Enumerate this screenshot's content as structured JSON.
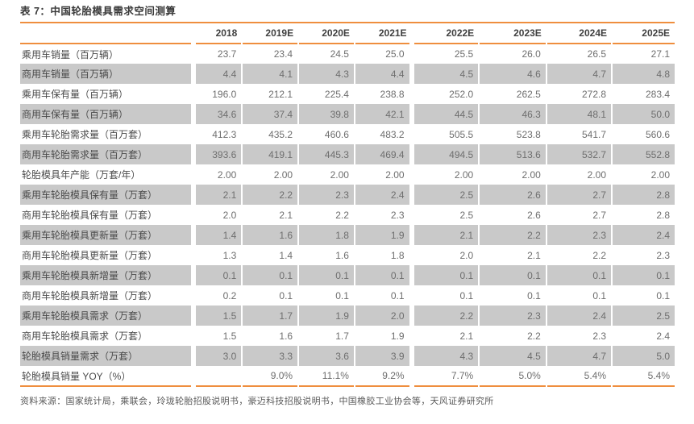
{
  "table": {
    "title": "表 7：中国轮胎模具需求空间测算",
    "columns": [
      "2018",
      "2019E",
      "2020E",
      "2021E",
      "2022E",
      "2023E",
      "2024E",
      "2025E"
    ],
    "rows": [
      {
        "label": "乘用车销量（百万辆）",
        "values": [
          "23.7",
          "23.4",
          "24.5",
          "25.0",
          "25.5",
          "26.0",
          "26.5",
          "27.1"
        ]
      },
      {
        "label": "商用车销量（百万辆）",
        "values": [
          "4.4",
          "4.1",
          "4.3",
          "4.4",
          "4.5",
          "4.6",
          "4.7",
          "4.8"
        ]
      },
      {
        "label": "乘用车保有量（百万辆）",
        "values": [
          "196.0",
          "212.1",
          "225.4",
          "238.8",
          "252.0",
          "262.5",
          "272.8",
          "283.4"
        ]
      },
      {
        "label": "商用车保有量（百万辆）",
        "values": [
          "34.6",
          "37.4",
          "39.8",
          "42.1",
          "44.5",
          "46.3",
          "48.1",
          "50.0"
        ]
      },
      {
        "label": "乘用车轮胎需求量（百万套）",
        "values": [
          "412.3",
          "435.2",
          "460.6",
          "483.2",
          "505.5",
          "523.8",
          "541.7",
          "560.6"
        ]
      },
      {
        "label": "商用车轮胎需求量（百万套）",
        "values": [
          "393.6",
          "419.1",
          "445.3",
          "469.4",
          "494.5",
          "513.6",
          "532.7",
          "552.8"
        ]
      },
      {
        "label": "轮胎模具年产能（万套/年）",
        "values": [
          "2.00",
          "2.00",
          "2.00",
          "2.00",
          "2.00",
          "2.00",
          "2.00",
          "2.00"
        ]
      },
      {
        "label": "乘用车轮胎模具保有量（万套）",
        "values": [
          "2.1",
          "2.2",
          "2.3",
          "2.4",
          "2.5",
          "2.6",
          "2.7",
          "2.8"
        ]
      },
      {
        "label": "商用车轮胎模具保有量（万套）",
        "values": [
          "2.0",
          "2.1",
          "2.2",
          "2.3",
          "2.5",
          "2.6",
          "2.7",
          "2.8"
        ]
      },
      {
        "label": "乘用车轮胎模具更新量（万套）",
        "values": [
          "1.4",
          "1.6",
          "1.8",
          "1.9",
          "2.1",
          "2.2",
          "2.3",
          "2.4"
        ]
      },
      {
        "label": "商用车轮胎模具更新量（万套）",
        "values": [
          "1.3",
          "1.4",
          "1.6",
          "1.8",
          "2.0",
          "2.1",
          "2.2",
          "2.3"
        ]
      },
      {
        "label": "乘用车轮胎模具新增量（万套）",
        "values": [
          "0.1",
          "0.1",
          "0.1",
          "0.1",
          "0.1",
          "0.1",
          "0.1",
          "0.1"
        ]
      },
      {
        "label": "商用车轮胎模具新增量（万套）",
        "values": [
          "0.2",
          "0.1",
          "0.1",
          "0.1",
          "0.1",
          "0.1",
          "0.1",
          "0.1"
        ]
      },
      {
        "label": "乘用车轮胎模具需求（万套）",
        "values": [
          "1.5",
          "1.7",
          "1.9",
          "2.0",
          "2.2",
          "2.3",
          "2.4",
          "2.5"
        ]
      },
      {
        "label": "商用车轮胎模具需求（万套）",
        "values": [
          "1.5",
          "1.6",
          "1.7",
          "1.9",
          "2.1",
          "2.2",
          "2.3",
          "2.4"
        ]
      },
      {
        "label": "轮胎模具销量需求（万套）",
        "values": [
          "3.0",
          "3.3",
          "3.6",
          "3.9",
          "4.3",
          "4.5",
          "4.7",
          "5.0"
        ]
      },
      {
        "label": "轮胎模具销量 YOY（%）",
        "values": [
          "",
          "9.0%",
          "11.1%",
          "9.2%",
          "7.7%",
          "5.0%",
          "5.4%",
          "5.4%"
        ]
      }
    ],
    "source": "资料来源：国家统计局，乘联会，玲珑轮胎招股说明书，豪迈科技招股说明书，中国橡胶工业协会等，天风证券研究所"
  },
  "colors": {
    "accent_orange": "#ef8e3e",
    "row_stripe_gray": "#c9c9c9"
  }
}
